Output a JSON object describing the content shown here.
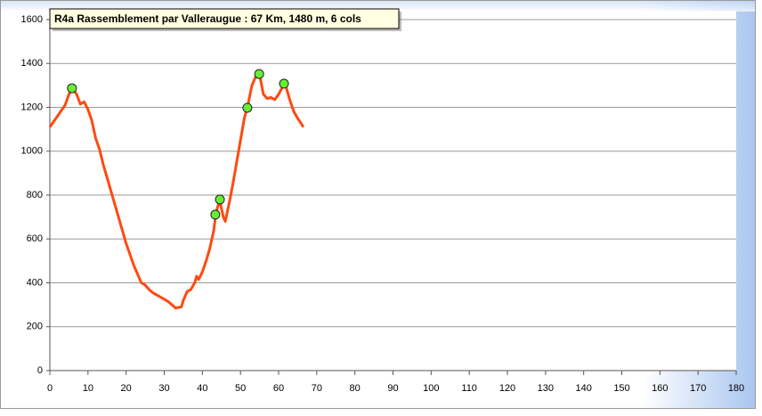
{
  "chart_data": {
    "type": "line",
    "title": "R4a Rassemblement par Valleraugue : 67 Km, 1480  m, 6 cols",
    "x": [
      0,
      2,
      4,
      5,
      6,
      7,
      8,
      9,
      10,
      11,
      12,
      13,
      14,
      15,
      16,
      17,
      18,
      19,
      20,
      21,
      22,
      23,
      24,
      25,
      26,
      27,
      28,
      29,
      30,
      31,
      32,
      33,
      34.5,
      35,
      36,
      37,
      38,
      38.5,
      39,
      40,
      41,
      42,
      43,
      43.5,
      44.5,
      45.5,
      46,
      47,
      48,
      49,
      50,
      51,
      51.8,
      53,
      54,
      55,
      56,
      57,
      58,
      59,
      60,
      61.4,
      62,
      63,
      64,
      65,
      66.5
    ],
    "values": [
      1110,
      1160,
      1210,
      1260,
      1285,
      1260,
      1215,
      1225,
      1190,
      1140,
      1060,
      1010,
      940,
      880,
      820,
      760,
      700,
      640,
      580,
      530,
      480,
      440,
      400,
      390,
      370,
      355,
      345,
      335,
      325,
      315,
      300,
      285,
      290,
      320,
      360,
      370,
      400,
      430,
      415,
      450,
      500,
      560,
      640,
      710,
      780,
      700,
      680,
      760,
      850,
      950,
      1050,
      1150,
      1200,
      1300,
      1340,
      1350,
      1260,
      1240,
      1245,
      1235,
      1260,
      1305,
      1290,
      1230,
      1180,
      1150,
      1110
    ],
    "color": "#ff4a10",
    "markers": {
      "x": [
        5.8,
        43.4,
        44.6,
        51.8,
        54.9,
        61.4
      ],
      "values": [
        1287,
        711,
        780,
        1198,
        1352,
        1308
      ],
      "color": "#66ee33"
    },
    "xlim": [
      0,
      180
    ],
    "xticks": [
      0,
      10,
      20,
      30,
      40,
      50,
      60,
      70,
      80,
      90,
      100,
      110,
      120,
      130,
      140,
      150,
      160,
      170,
      180
    ],
    "ylim": [
      0,
      1600
    ],
    "yticks": [
      0,
      200,
      400,
      600,
      800,
      1000,
      1200,
      1400,
      1600
    ],
    "grid": true
  }
}
